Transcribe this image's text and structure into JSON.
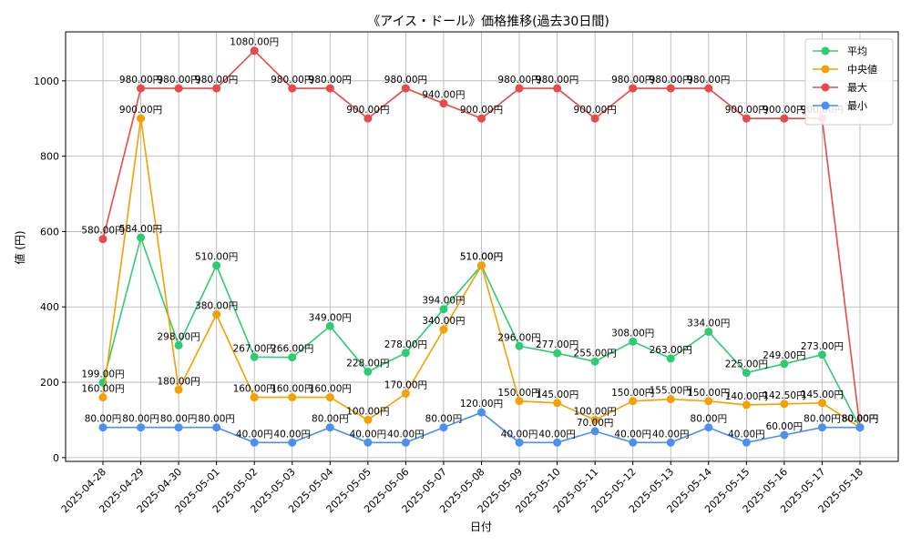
{
  "chart_data": {
    "type": "line",
    "title": "《アイス・ドール》価格推移(過去30日間)",
    "xlabel": "日付",
    "ylabel": "値 (円)",
    "ylim": [
      -10,
      1130
    ],
    "yticks": [
      0,
      200,
      400,
      600,
      800,
      1000
    ],
    "grid": true,
    "legend_position": "top-right",
    "value_suffix": "円",
    "categories": [
      "2025-04-28",
      "2025-04-29",
      "2025-04-30",
      "2025-05-01",
      "2025-05-02",
      "2025-05-03",
      "2025-05-04",
      "2025-05-05",
      "2025-05-06",
      "2025-05-07",
      "2025-05-08",
      "2025-05-09",
      "2025-05-10",
      "2025-05-11",
      "2025-05-12",
      "2025-05-13",
      "2025-05-14",
      "2025-05-15",
      "2025-05-16",
      "2025-05-17",
      "2025-05-18"
    ],
    "series": [
      {
        "name": "平均",
        "color": "#2ecc71",
        "values": [
          199,
          584,
          298,
          510,
          267,
          266,
          349,
          228,
          278,
          394,
          510,
          296,
          277,
          255,
          308,
          263,
          334,
          225,
          249,
          273,
          80
        ]
      },
      {
        "name": "中央値",
        "color": "#f5a000",
        "values": [
          160,
          900,
          180,
          380,
          160,
          160,
          160,
          100,
          170,
          340,
          510,
          150,
          145,
          100,
          150,
          155,
          150,
          140,
          142.5,
          145,
          80
        ]
      },
      {
        "name": "最大",
        "color": "#e84a4a",
        "values": [
          580,
          980,
          980,
          980,
          1080,
          980,
          980,
          900,
          980,
          940,
          900,
          980,
          980,
          900,
          980,
          980,
          980,
          900,
          900,
          900,
          80
        ]
      },
      {
        "name": "最小",
        "color": "#4a90f0",
        "values": [
          80,
          80,
          80,
          80,
          40,
          40,
          80,
          40,
          40,
          80,
          120,
          40,
          40,
          70,
          40,
          40,
          80,
          40,
          60,
          80,
          80
        ]
      }
    ]
  }
}
